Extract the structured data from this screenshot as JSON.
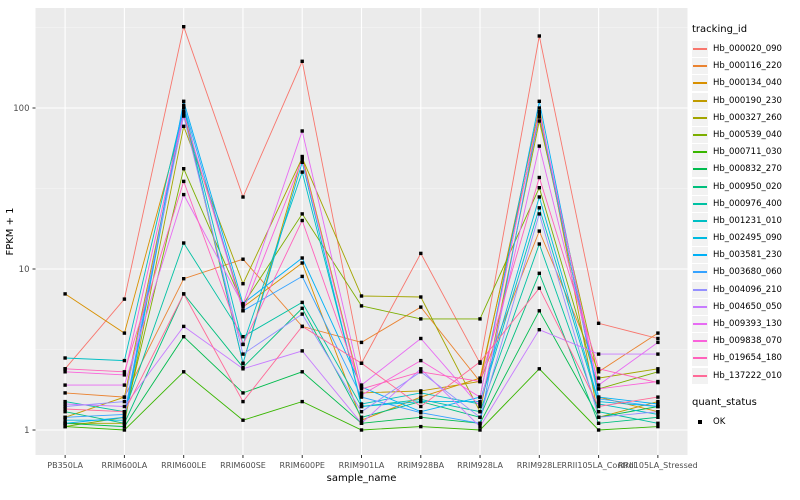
{
  "chart_data": {
    "type": "line",
    "title": "",
    "xlabel": "sample_name",
    "ylabel": "FPKM + 1",
    "y_scale": "log10",
    "y_ticks": [
      "1",
      "10",
      "100"
    ],
    "ylim": [
      1,
      420
    ],
    "grid": "on",
    "legend_position": "right",
    "point_color": "#000000",
    "point_shape": "square",
    "categories": [
      "PB350LA",
      "RRIM600LA",
      "RRIM600LE",
      "RRIM600SE",
      "RRIM600PE",
      "RRIM901LA",
      "RRIM928BA",
      "RRIM928LA",
      "RRIM928LE",
      "RRII105LA_Control",
      "RRII105LA_Stressed"
    ],
    "series": [
      {
        "name": "Hb_000020_090",
        "color": "#F8766D",
        "values": [
          2.4,
          6.5,
          320,
          28,
          195,
          2.6,
          12.5,
          2.6,
          280,
          4.6,
          3.7
        ]
      },
      {
        "name": "Hb_000116_220",
        "color": "#EA8331",
        "values": [
          1.7,
          1.6,
          8.7,
          11.5,
          4.4,
          3.5,
          5.8,
          2.0,
          17.2,
          2.3,
          4.0
        ]
      },
      {
        "name": "Hb_000134_040",
        "color": "#D89000",
        "values": [
          7.0,
          4.0,
          90,
          5.8,
          10.9,
          1.15,
          1.6,
          2.1,
          88,
          1.6,
          1.3
        ]
      },
      {
        "name": "Hb_000190_230",
        "color": "#C09B00",
        "values": [
          1.2,
          1.6,
          95,
          2.6,
          50,
          1.7,
          1.75,
          2.0,
          100,
          1.2,
          1.5
        ]
      },
      {
        "name": "Hb_000327_260",
        "color": "#A3A500",
        "values": [
          1.1,
          1.1,
          77,
          8.1,
          49,
          6.8,
          6.7,
          1.3,
          83,
          2.1,
          2.4
        ]
      },
      {
        "name": "Hb_000539_040",
        "color": "#7CAE00",
        "values": [
          1.05,
          1.2,
          42,
          6.0,
          22,
          5.9,
          4.9,
          4.9,
          32,
          1.8,
          2.3
        ]
      },
      {
        "name": "Hb_000711_030",
        "color": "#39B600",
        "values": [
          1.05,
          1.0,
          2.3,
          1.15,
          1.5,
          1.0,
          1.05,
          1.0,
          2.4,
          1.0,
          1.05
        ]
      },
      {
        "name": "Hb_000832_270",
        "color": "#00BB4E",
        "values": [
          1.1,
          1.05,
          3.8,
          1.7,
          2.3,
          1.1,
          1.2,
          1.1,
          5.5,
          1.2,
          1.4
        ]
      },
      {
        "name": "Hb_000950_020",
        "color": "#00BF7D",
        "values": [
          1.3,
          1.1,
          7.0,
          2.45,
          5.7,
          1.2,
          1.5,
          1.2,
          9.4,
          1.1,
          1.2
        ]
      },
      {
        "name": "Hb_000976_400",
        "color": "#00C1A3",
        "values": [
          1.5,
          1.3,
          14.5,
          3.8,
          6.2,
          1.4,
          1.55,
          1.3,
          14.3,
          1.3,
          1.1
        ]
      },
      {
        "name": "Hb_001231_010",
        "color": "#00BFC4",
        "values": [
          2.8,
          2.7,
          102,
          3.4,
          40,
          1.45,
          1.7,
          1.45,
          24,
          1.45,
          1.25
        ]
      },
      {
        "name": "Hb_002495_090",
        "color": "#00BAE0",
        "values": [
          1.15,
          1.15,
          100,
          2.6,
          46,
          1.4,
          1.5,
          1.5,
          28,
          1.5,
          1.4
        ]
      },
      {
        "name": "Hb_003581_230",
        "color": "#00B0F6",
        "values": [
          1.1,
          1.2,
          110,
          6.1,
          11.7,
          1.85,
          1.3,
          1.6,
          110,
          1.6,
          1.45
        ]
      },
      {
        "name": "Hb_003680_060",
        "color": "#35A2FF",
        "values": [
          1.2,
          1.25,
          104,
          5.5,
          9.0,
          1.6,
          1.28,
          1.1,
          92,
          1.56,
          1.4
        ]
      },
      {
        "name": "Hb_004096_210",
        "color": "#9590FF",
        "values": [
          1.4,
          1.5,
          89,
          2.96,
          5.25,
          1.3,
          2.3,
          1.2,
          22,
          1.2,
          1.3
        ]
      },
      {
        "name": "Hb_004650_050",
        "color": "#C77CFF",
        "values": [
          1.45,
          1.4,
          4.4,
          2.4,
          3.1,
          1.1,
          2.4,
          1.05,
          4.2,
          2.96,
          2.96
        ]
      },
      {
        "name": "Hb_009393_130",
        "color": "#E76BF3",
        "values": [
          1.9,
          1.9,
          29,
          6.0,
          72,
          1.9,
          3.7,
          1.4,
          58,
          1.9,
          3.5
        ]
      },
      {
        "name": "Hb_009838_070",
        "color": "#FA62DB",
        "values": [
          2.3,
          2.2,
          93,
          5.5,
          48,
          1.65,
          2.7,
          1.6,
          95,
          1.8,
          2.0
        ]
      },
      {
        "name": "Hb_019654_180",
        "color": "#FF62BC",
        "values": [
          2.4,
          2.3,
          35,
          3.4,
          20,
          1.8,
          2.3,
          2.0,
          37,
          2.4,
          1.97
        ]
      },
      {
        "name": "Hb_137222_010",
        "color": "#FF6A98",
        "values": [
          1.35,
          1.3,
          7.0,
          1.5,
          4.4,
          2.6,
          1.4,
          2.65,
          7.6,
          1.4,
          1.6
        ]
      }
    ]
  },
  "legend": {
    "tracking_title": "tracking_id",
    "quant_title": "quant_status",
    "quant_items": [
      {
        "label": "OK"
      }
    ]
  },
  "panel": {
    "bg": "#EBEBEB",
    "grid_major": "#FFFFFF",
    "grid_minor": "#F7F7F7",
    "tick_color": "#333333",
    "tick_label_color": "#4D4D4D"
  }
}
